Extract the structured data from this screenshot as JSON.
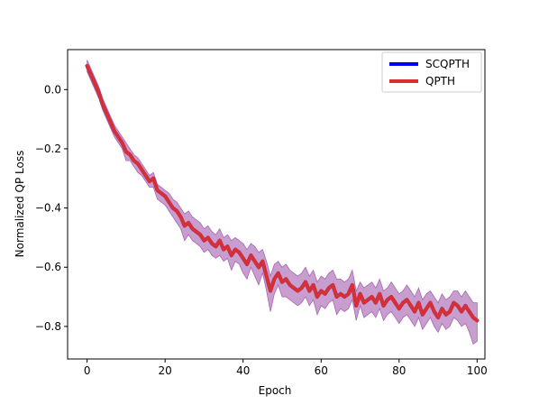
{
  "chart_data": {
    "type": "line",
    "title": "",
    "xlabel": "Epoch",
    "ylabel": "Normalized QP Loss",
    "xlim": [
      -5,
      102
    ],
    "ylim": [
      -0.91,
      0.135
    ],
    "xticks": [
      0,
      20,
      40,
      60,
      80,
      100
    ],
    "xtick_labels": [
      "0",
      "20",
      "40",
      "60",
      "80",
      "100"
    ],
    "yticks": [
      0.0,
      -0.2,
      -0.4,
      -0.6,
      -0.8
    ],
    "ytick_labels": [
      "0.0",
      "−0.2",
      "−0.4",
      "−0.6",
      "−0.8"
    ],
    "grid": false,
    "legend_position": "top-right",
    "x": [
      0,
      1,
      2,
      3,
      4,
      5,
      6,
      7,
      8,
      9,
      10,
      11,
      12,
      13,
      14,
      15,
      16,
      17,
      18,
      19,
      20,
      21,
      22,
      23,
      24,
      25,
      26,
      27,
      28,
      29,
      30,
      31,
      32,
      33,
      34,
      35,
      36,
      37,
      38,
      39,
      40,
      41,
      42,
      43,
      44,
      45,
      46,
      47,
      48,
      49,
      50,
      51,
      52,
      53,
      54,
      55,
      56,
      57,
      58,
      59,
      60,
      61,
      62,
      63,
      64,
      65,
      66,
      67,
      68,
      69,
      70,
      71,
      72,
      73,
      74,
      75,
      76,
      77,
      78,
      79,
      80,
      81,
      82,
      83,
      84,
      85,
      86,
      87,
      88,
      89,
      90,
      91,
      92,
      93,
      94,
      95,
      96,
      97,
      98,
      99,
      100
    ],
    "series": [
      {
        "name": "SCQPTH",
        "color": "#0000ee",
        "values": [
          0.08,
          0.05,
          0.02,
          -0.01,
          -0.05,
          -0.08,
          -0.11,
          -0.14,
          -0.16,
          -0.18,
          -0.21,
          -0.22,
          -0.24,
          -0.25,
          -0.27,
          -0.29,
          -0.31,
          -0.3,
          -0.34,
          -0.35,
          -0.36,
          -0.38,
          -0.4,
          -0.41,
          -0.43,
          -0.46,
          -0.45,
          -0.47,
          -0.48,
          -0.49,
          -0.51,
          -0.5,
          -0.52,
          -0.53,
          -0.51,
          -0.54,
          -0.53,
          -0.56,
          -0.54,
          -0.55,
          -0.57,
          -0.59,
          -0.56,
          -0.58,
          -0.6,
          -0.58,
          -0.63,
          -0.68,
          -0.64,
          -0.62,
          -0.65,
          -0.64,
          -0.66,
          -0.67,
          -0.68,
          -0.67,
          -0.65,
          -0.68,
          -0.66,
          -0.7,
          -0.68,
          -0.69,
          -0.67,
          -0.66,
          -0.7,
          -0.69,
          -0.7,
          -0.69,
          -0.66,
          -0.73,
          -0.69,
          -0.72,
          -0.71,
          -0.7,
          -0.72,
          -0.69,
          -0.73,
          -0.71,
          -0.7,
          -0.72,
          -0.74,
          -0.72,
          -0.71,
          -0.73,
          -0.75,
          -0.72,
          -0.76,
          -0.74,
          -0.72,
          -0.75,
          -0.77,
          -0.74,
          -0.76,
          -0.75,
          -0.72,
          -0.73,
          -0.75,
          -0.73,
          -0.75,
          -0.77,
          -0.78
        ]
      },
      {
        "name": "QPTH",
        "color": "#d62f34",
        "values": [
          0.08,
          0.05,
          0.02,
          -0.01,
          -0.05,
          -0.08,
          -0.11,
          -0.14,
          -0.16,
          -0.18,
          -0.21,
          -0.22,
          -0.24,
          -0.25,
          -0.27,
          -0.29,
          -0.31,
          -0.3,
          -0.34,
          -0.35,
          -0.36,
          -0.38,
          -0.4,
          -0.41,
          -0.43,
          -0.46,
          -0.45,
          -0.47,
          -0.48,
          -0.49,
          -0.51,
          -0.5,
          -0.52,
          -0.53,
          -0.51,
          -0.54,
          -0.53,
          -0.56,
          -0.54,
          -0.55,
          -0.57,
          -0.59,
          -0.56,
          -0.58,
          -0.6,
          -0.58,
          -0.63,
          -0.68,
          -0.64,
          -0.62,
          -0.65,
          -0.64,
          -0.66,
          -0.67,
          -0.68,
          -0.67,
          -0.65,
          -0.68,
          -0.66,
          -0.7,
          -0.68,
          -0.69,
          -0.67,
          -0.66,
          -0.7,
          -0.69,
          -0.7,
          -0.69,
          -0.66,
          -0.73,
          -0.69,
          -0.72,
          -0.71,
          -0.7,
          -0.72,
          -0.69,
          -0.73,
          -0.71,
          -0.7,
          -0.72,
          -0.74,
          -0.72,
          -0.71,
          -0.73,
          -0.75,
          -0.72,
          -0.76,
          -0.74,
          -0.72,
          -0.75,
          -0.77,
          -0.74,
          -0.76,
          -0.75,
          -0.72,
          -0.73,
          -0.75,
          -0.73,
          -0.75,
          -0.77,
          -0.78
        ]
      }
    ],
    "band": {
      "color": "#9b4ea8",
      "opacity": 0.55,
      "upper": [
        0.1,
        0.07,
        0.04,
        0.01,
        -0.03,
        -0.06,
        -0.09,
        -0.12,
        -0.14,
        -0.16,
        -0.18,
        -0.2,
        -0.22,
        -0.23,
        -0.25,
        -0.27,
        -0.29,
        -0.28,
        -0.32,
        -0.33,
        -0.34,
        -0.35,
        -0.37,
        -0.38,
        -0.4,
        -0.42,
        -0.41,
        -0.43,
        -0.44,
        -0.45,
        -0.47,
        -0.46,
        -0.48,
        -0.49,
        -0.47,
        -0.5,
        -0.49,
        -0.51,
        -0.5,
        -0.51,
        -0.52,
        -0.54,
        -0.52,
        -0.53,
        -0.55,
        -0.54,
        -0.58,
        -0.63,
        -0.59,
        -0.58,
        -0.6,
        -0.59,
        -0.61,
        -0.62,
        -0.63,
        -0.62,
        -0.6,
        -0.63,
        -0.61,
        -0.65,
        -0.63,
        -0.64,
        -0.62,
        -0.61,
        -0.64,
        -0.64,
        -0.65,
        -0.64,
        -0.61,
        -0.68,
        -0.65,
        -0.67,
        -0.66,
        -0.65,
        -0.67,
        -0.64,
        -0.68,
        -0.67,
        -0.65,
        -0.67,
        -0.69,
        -0.68,
        -0.66,
        -0.68,
        -0.7,
        -0.67,
        -0.71,
        -0.69,
        -0.68,
        -0.7,
        -0.72,
        -0.69,
        -0.71,
        -0.7,
        -0.68,
        -0.68,
        -0.7,
        -0.68,
        -0.7,
        -0.72,
        -0.72
      ],
      "lower": [
        0.06,
        0.03,
        0.0,
        -0.03,
        -0.07,
        -0.1,
        -0.13,
        -0.16,
        -0.18,
        -0.2,
        -0.24,
        -0.24,
        -0.26,
        -0.28,
        -0.29,
        -0.31,
        -0.33,
        -0.33,
        -0.37,
        -0.38,
        -0.39,
        -0.41,
        -0.43,
        -0.45,
        -0.47,
        -0.51,
        -0.49,
        -0.51,
        -0.52,
        -0.53,
        -0.55,
        -0.54,
        -0.56,
        -0.57,
        -0.56,
        -0.58,
        -0.57,
        -0.61,
        -0.58,
        -0.59,
        -0.62,
        -0.64,
        -0.6,
        -0.63,
        -0.66,
        -0.62,
        -0.68,
        -0.75,
        -0.69,
        -0.66,
        -0.7,
        -0.7,
        -0.71,
        -0.72,
        -0.73,
        -0.72,
        -0.7,
        -0.73,
        -0.71,
        -0.76,
        -0.73,
        -0.74,
        -0.72,
        -0.71,
        -0.76,
        -0.74,
        -0.75,
        -0.74,
        -0.71,
        -0.78,
        -0.73,
        -0.77,
        -0.76,
        -0.75,
        -0.77,
        -0.74,
        -0.78,
        -0.76,
        -0.75,
        -0.77,
        -0.79,
        -0.77,
        -0.76,
        -0.78,
        -0.8,
        -0.77,
        -0.81,
        -0.79,
        -0.77,
        -0.8,
        -0.82,
        -0.79,
        -0.81,
        -0.8,
        -0.77,
        -0.78,
        -0.8,
        -0.79,
        -0.82,
        -0.86,
        -0.85
      ]
    }
  }
}
